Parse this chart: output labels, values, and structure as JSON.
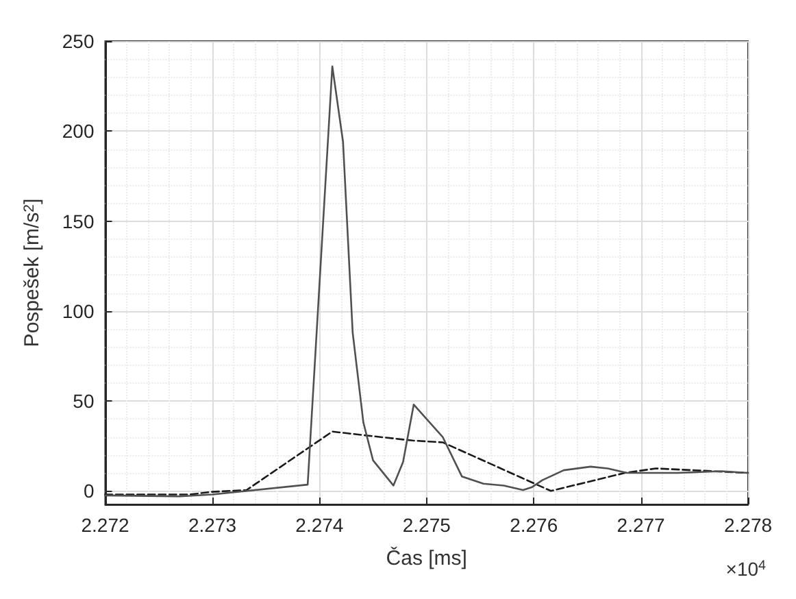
{
  "chart_data": {
    "type": "line",
    "xlabel": "Čas [ms]",
    "ylabel": "Pospešek [m/s$^{2}$]",
    "annotations": [
      "×10$^{4}$"
    ],
    "xlim": [
      2.272,
      2.278
    ],
    "xticks": [
      2.272,
      2.273,
      2.274,
      2.275,
      2.276,
      2.277,
      2.278
    ],
    "ylim": [
      -7.5,
      250
    ],
    "yticks": [
      0,
      50,
      100,
      150,
      200,
      250
    ],
    "grid": true,
    "marker": "none",
    "series": [
      {
        "color": "#1a1a1a",
        "line_style": "dashed",
        "x": [
          2.272,
          2.27279,
          2.273,
          2.27332,
          2.27412,
          2.27441,
          2.27487,
          2.27515,
          2.27616,
          2.27685,
          2.27714,
          2.278
        ],
        "values": [
          -2,
          -2,
          -0.5,
          0.5,
          33,
          31,
          28,
          27,
          0,
          10,
          12.5,
          10
        ]
      },
      {
        "color": "#505050",
        "line_style": "solid",
        "x": [
          2.272,
          2.2727,
          2.273,
          2.27389,
          2.27412,
          2.27422,
          2.27431,
          2.27441,
          2.2745,
          2.27469,
          2.27478,
          2.27488,
          2.27515,
          2.27533,
          2.27553,
          2.27572,
          2.2759,
          2.27598,
          2.27608,
          2.27628,
          2.27653,
          2.27669,
          2.27687,
          2.27734,
          2.27775,
          2.278
        ],
        "values": [
          -2.5,
          -3,
          -2,
          3.5,
          236,
          194,
          88,
          38,
          17,
          3,
          16,
          48,
          30,
          8,
          4,
          3,
          0.5,
          2,
          6,
          11.5,
          13.5,
          12.5,
          10,
          10,
          11,
          10
        ]
      }
    ]
  }
}
